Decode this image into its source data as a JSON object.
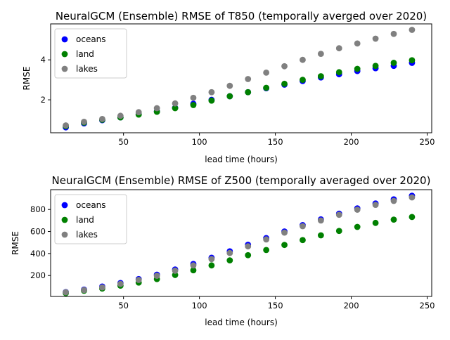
{
  "chart_data": [
    {
      "type": "scatter",
      "title": "NeuralGCM (Ensemble) RMSE of T850 (temporally averged over 2020)",
      "xlabel": "lead time (hours)",
      "ylabel": "RMSE",
      "xlim": [
        2,
        253
      ],
      "ylim": [
        0.35,
        5.8
      ],
      "xticks": [
        50,
        100,
        150,
        200,
        250
      ],
      "yticks": [
        2,
        4
      ],
      "legend_position": "upper-left",
      "grid": false,
      "x": [
        12,
        24,
        36,
        48,
        60,
        72,
        84,
        96,
        108,
        120,
        132,
        144,
        156,
        168,
        180,
        192,
        204,
        216,
        228,
        240
      ],
      "series": [
        {
          "name": "oceans",
          "color": "#0000ff",
          "values": [
            0.62,
            0.82,
            0.98,
            1.12,
            1.28,
            1.42,
            1.6,
            1.8,
            2.0,
            2.18,
            2.38,
            2.58,
            2.76,
            2.94,
            3.12,
            3.28,
            3.44,
            3.58,
            3.7,
            3.85
          ]
        },
        {
          "name": "land",
          "color": "#008000",
          "values": [
            0.68,
            0.86,
            1.0,
            1.12,
            1.26,
            1.4,
            1.58,
            1.74,
            1.96,
            2.18,
            2.38,
            2.6,
            2.8,
            3.0,
            3.18,
            3.38,
            3.55,
            3.7,
            3.85,
            3.98
          ]
        },
        {
          "name": "lakes",
          "color": "#808080",
          "values": [
            0.72,
            0.9,
            1.04,
            1.2,
            1.38,
            1.58,
            1.82,
            2.1,
            2.38,
            2.7,
            3.04,
            3.36,
            3.68,
            4.0,
            4.3,
            4.58,
            4.82,
            5.06,
            5.3,
            5.5
          ]
        }
      ]
    },
    {
      "type": "scatter",
      "title": "NeuralGCM (Ensemble) RMSE of Z500 (temporally averaged over 2020)",
      "xlabel": "lead time (hours)",
      "ylabel": "RMSE",
      "xlim": [
        2,
        253
      ],
      "ylim": [
        10,
        980
      ],
      "xticks": [
        50,
        100,
        150,
        200,
        250
      ],
      "yticks": [
        200,
        400,
        600,
        800
      ],
      "legend_position": "upper-left",
      "grid": false,
      "x": [
        12,
        24,
        36,
        48,
        60,
        72,
        84,
        96,
        108,
        120,
        132,
        144,
        156,
        168,
        180,
        192,
        204,
        216,
        228,
        240
      ],
      "series": [
        {
          "name": "oceans",
          "color": "#0000ff",
          "values": [
            50,
            72,
            100,
            132,
            168,
            208,
            255,
            305,
            362,
            420,
            480,
            540,
            600,
            658,
            710,
            762,
            810,
            855,
            892,
            925
          ]
        },
        {
          "name": "land",
          "color": "#008000",
          "values": [
            40,
            62,
            82,
            108,
            136,
            168,
            205,
            248,
            292,
            338,
            385,
            432,
            478,
            522,
            565,
            605,
            642,
            678,
            708,
            732
          ]
        },
        {
          "name": "lakes",
          "color": "#808080",
          "values": [
            48,
            68,
            92,
            124,
            160,
            198,
            244,
            292,
            350,
            405,
            465,
            528,
            590,
            648,
            700,
            752,
            798,
            842,
            878,
            910
          ]
        }
      ]
    }
  ]
}
